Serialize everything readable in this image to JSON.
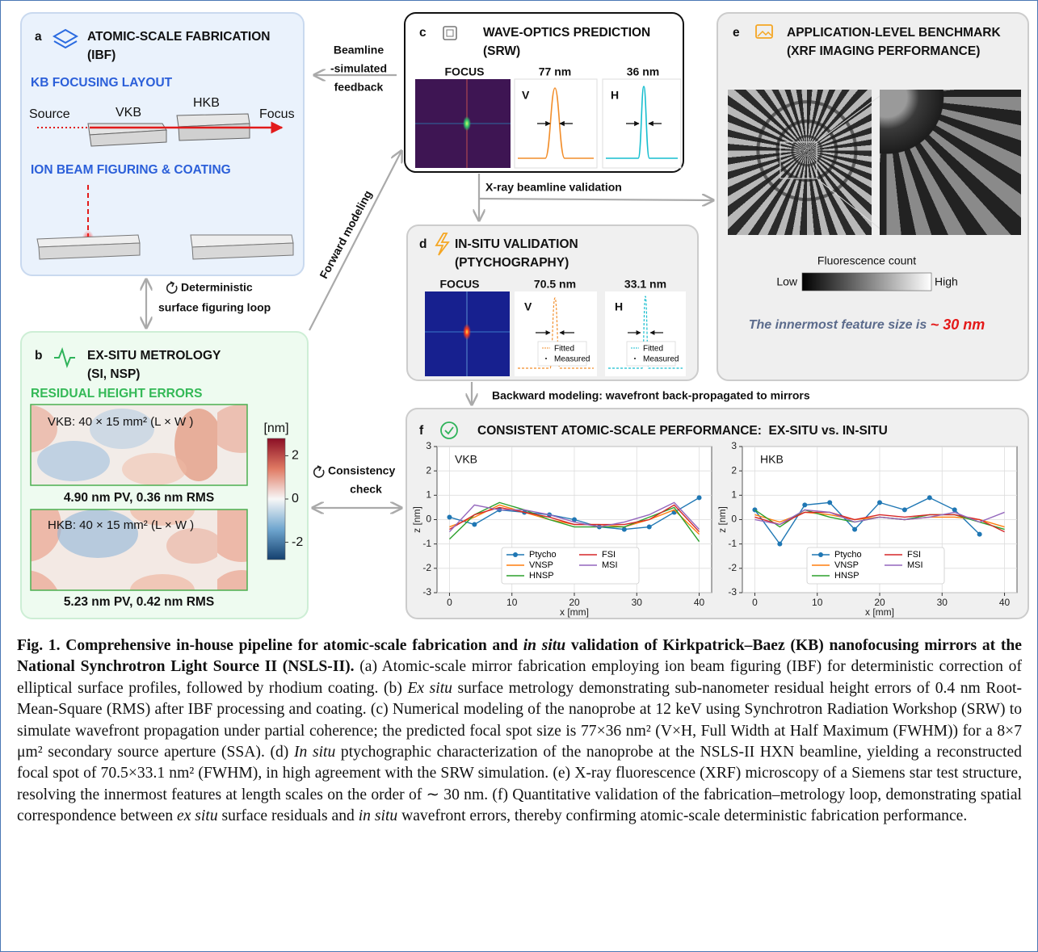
{
  "chart_data": [
    {
      "type": "line",
      "title": "VKB",
      "x_label": "x [mm]",
      "y_label": "z [nm]",
      "x": [
        0,
        4,
        8,
        12,
        16,
        20,
        24,
        28,
        32,
        36,
        40
      ],
      "series": [
        {
          "name": "Ptycho",
          "color": "#1f77b4",
          "marker": "circle",
          "values": [
            0.1,
            -0.2,
            0.4,
            0.3,
            0.2,
            0.0,
            -0.3,
            -0.4,
            -0.3,
            0.3,
            0.9
          ]
        },
        {
          "name": "VNSP",
          "color": "#ff7f0e",
          "values": [
            -0.3,
            0.1,
            0.6,
            0.3,
            0.0,
            -0.2,
            -0.2,
            -0.3,
            0.0,
            0.4,
            -0.6
          ]
        },
        {
          "name": "HNSP",
          "color": "#2ca02c",
          "values": [
            -0.8,
            0.2,
            0.7,
            0.4,
            0.0,
            -0.3,
            -0.3,
            -0.3,
            0.1,
            0.5,
            -0.9
          ]
        },
        {
          "name": "FSI",
          "color": "#d62728",
          "values": [
            -0.4,
            0.2,
            0.5,
            0.3,
            0.1,
            -0.2,
            -0.2,
            -0.2,
            0.0,
            0.6,
            -0.5
          ]
        },
        {
          "name": "MSI",
          "color": "#9467bd",
          "values": [
            -0.5,
            0.6,
            0.4,
            0.4,
            0.2,
            -0.1,
            -0.3,
            -0.1,
            0.2,
            0.7,
            -0.4
          ]
        }
      ],
      "xlim": [
        -2,
        42
      ],
      "ylim": [
        -3,
        3
      ],
      "xticks": [
        0,
        10,
        20,
        30,
        40
      ],
      "yticks": [
        -3,
        -2,
        -1,
        0,
        1,
        2,
        3
      ],
      "grid": true,
      "legend": "lower center"
    },
    {
      "type": "line",
      "title": "HKB",
      "x_label": "x [mm]",
      "y_label": "z [nm]",
      "x": [
        0,
        4,
        8,
        12,
        16,
        20,
        24,
        28,
        32,
        36,
        40
      ],
      "series": [
        {
          "name": "Ptycho",
          "color": "#1f77b4",
          "marker": "circle",
          "values": [
            0.4,
            -1.0,
            0.6,
            0.7,
            -0.4,
            0.7,
            0.4,
            0.9,
            0.4,
            -0.6,
            null
          ]
        },
        {
          "name": "VNSP",
          "color": "#ff7f0e",
          "values": [
            0.2,
            -0.1,
            0.3,
            0.2,
            0.0,
            0.1,
            0.0,
            0.1,
            0.1,
            0.0,
            -0.3
          ]
        },
        {
          "name": "HNSP",
          "color": "#2ca02c",
          "values": [
            0.4,
            -0.3,
            0.4,
            0.1,
            -0.1,
            0.1,
            0.0,
            0.2,
            0.2,
            -0.1,
            -0.4
          ]
        },
        {
          "name": "FSI",
          "color": "#d62728",
          "values": [
            0.1,
            -0.2,
            0.3,
            0.3,
            0.0,
            0.2,
            0.1,
            0.2,
            0.2,
            0.0,
            -0.5
          ]
        },
        {
          "name": "MSI",
          "color": "#9467bd",
          "values": [
            0.0,
            -0.2,
            0.4,
            0.3,
            -0.1,
            0.1,
            0.0,
            0.1,
            0.3,
            -0.1,
            0.3
          ]
        }
      ],
      "xlim": [
        -2,
        42
      ],
      "ylim": [
        -3,
        3
      ],
      "xticks": [
        0,
        10,
        20,
        30,
        40
      ],
      "yticks": [
        -3,
        -2,
        -1,
        0,
        1,
        2,
        3
      ],
      "grid": true,
      "legend": "lower center"
    }
  ],
  "figure": {
    "a": {
      "letter": "a",
      "title": [
        "ATOMIC-SCALE FABRICATION",
        "(IBF)"
      ],
      "layout_heading": "KB FOCUSING LAYOUT",
      "source": "Source",
      "vkb": "VKB",
      "hkb": "HKB",
      "focus": "Focus",
      "ibf_heading": "ION BEAM FIGURING & COATING"
    },
    "b": {
      "letter": "b",
      "title": [
        "EX-SITU METROLOGY",
        "(SI, NSP)"
      ],
      "heading": "RESIDUAL HEIGHT ERRORS",
      "vkb_map": "VKB: 40 × 15 mm² (L × W )",
      "vkb_stats": "4.90 nm PV, 0.36 nm RMS",
      "hkb_map": "HKB: 40 × 15 mm² (L × W )",
      "hkb_stats": "5.23 nm PV, 0.42 nm RMS",
      "colorbar": {
        "label": "[nm]",
        "lim": [
          -2.8,
          2.8
        ],
        "ticks": [
          2,
          0,
          -2
        ]
      }
    },
    "c": {
      "letter": "c",
      "title": [
        "WAVE-OPTICS PREDICTION",
        "(SRW)"
      ],
      "focus": "FOCUS",
      "v_size": "77 nm",
      "h_size": "36 nm",
      "v": "V",
      "h": "H"
    },
    "d": {
      "letter": "d",
      "title": [
        "IN-SITU VALIDATION",
        "(PTYCHOGRAPHY)"
      ],
      "focus": "FOCUS",
      "v_size": "70.5 nm",
      "h_size": "33.1 nm",
      "v": "V",
      "h": "H",
      "fitted": "Fitted",
      "measured": "Measured"
    },
    "e": {
      "letter": "e",
      "title": [
        "APPLICATION-LEVEL BENCHMARK",
        "(XRF IMAGING PERFORMANCE)"
      ],
      "colorbar_label": "Fluorescence count",
      "low": "Low",
      "high": "High",
      "note": "The innermost feature size is ",
      "note_value": "~ 30 nm"
    },
    "f": {
      "letter": "f",
      "title": "CONSISTENT ATOMIC-SCALE PERFORMANCE:  EX-SITU vs. IN-SITU"
    },
    "arrows": {
      "feedback": [
        "Beamline",
        "-simulated",
        "feedback"
      ],
      "forward": "Forward modeling",
      "loop": [
        "Deterministic",
        "surface figuring loop"
      ],
      "validation": "X-ray beamline validation",
      "backward": "Backward modeling: wavefront back-propagated to mirrors",
      "consistency": [
        "Consistency",
        "check"
      ]
    }
  },
  "caption": {
    "label": "Fig. 1.",
    "title_runs": [
      {
        "text": " Comprehensive in-house pipeline for atomic-scale fabrication and "
      },
      {
        "text": "in situ",
        "italic": true
      },
      {
        "text": " validation of Kirkpatrick–Baez (KB) nanofocusing mirrors at the National Synchrotron Light Source II (NSLS-II)."
      }
    ],
    "body_runs": [
      {
        "text": " (a) Atomic-scale mirror fabrication employing ion beam figuring (IBF) for deterministic correction of elliptical surface profiles, followed by rhodium coating. (b) "
      },
      {
        "text": "Ex situ",
        "italic": true
      },
      {
        "text": " surface metrology demonstrating sub-nanometer residual height errors of 0.4 nm Root-Mean-Square (RMS) after IBF processing and coating. (c) Numerical modeling of the nanoprobe at 12 keV using Synchrotron Radiation Workshop (SRW) to simulate wavefront propagation under partial coherence; the predicted focal spot size is 77×36 nm² (V×H, Full Width at Half Maximum (FWHM)) for a 8×7 μm² secondary source aperture (SSA). (d) "
      },
      {
        "text": "In situ",
        "italic": true
      },
      {
        "text": " ptychographic characterization of the nanoprobe at the NSLS-II HXN beamline, yielding a reconstructed focal spot of 70.5×33.1 nm² (FWHM), in high agreement with the SRW simulation. (e) X-ray fluorescence (XRF) microscopy of a Siemens star test structure, resolving the innermost features at length scales on the order of ∼ 30 nm. (f) Quantitative validation of the fabrication–metrology loop, demonstrating spatial correspondence between "
      },
      {
        "text": "ex situ",
        "italic": true
      },
      {
        "text": " surface residuals and "
      },
      {
        "text": "in situ",
        "italic": true
      },
      {
        "text": " wavefront errors, thereby confirming atomic-scale deterministic fabrication performance."
      }
    ]
  }
}
